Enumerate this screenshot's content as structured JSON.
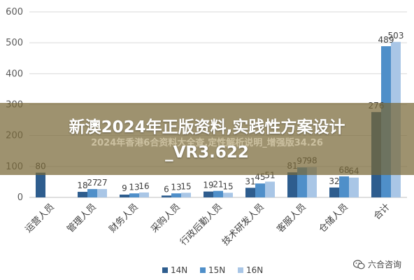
{
  "chart_data": {
    "type": "bar",
    "categories": [
      "运营人员",
      "管理人员",
      "财务人员",
      "采购人员",
      "行政后勤人员",
      "技术研发人员",
      "客服人员",
      "仓储人员",
      "合计"
    ],
    "series": [
      {
        "name": "14N",
        "color": "#2e5d8e",
        "values": [
          80,
          18,
          9,
          6,
          19,
          31,
          81,
          32,
          276
        ]
      },
      {
        "name": "15N",
        "color": "#4f8fc9",
        "values": [
          null,
          27,
          13,
          13,
          21,
          45,
          97,
          68,
          489
        ]
      },
      {
        "name": "16N",
        "color": "#a9c6e6",
        "values": [
          null,
          27,
          16,
          15,
          15,
          51,
          98,
          64,
          503
        ]
      }
    ],
    "data_labels": [
      [
        "80",
        "",
        ""
      ],
      [
        "18",
        "27",
        "27"
      ],
      [
        "9",
        "13",
        "16"
      ],
      [
        "6",
        "13",
        "15"
      ],
      [
        "19",
        "21",
        "15"
      ],
      [
        "31",
        "45",
        "51"
      ],
      [
        "81",
        "97",
        "98"
      ],
      [
        "32",
        "68",
        "64"
      ],
      [
        "276",
        "489",
        "503"
      ]
    ],
    "ylim": [
      0,
      600
    ],
    "yticks": [
      "0",
      "100",
      "200",
      "300",
      "400",
      "500",
      "600"
    ],
    "grid": true,
    "legend_position": "bottom"
  },
  "overlay": {
    "title_line1": "新澳2024年正版资料,实践性方案设计",
    "title_line2": "_VR3.622",
    "ghost_text": "2024年香港6合资料大全查,定性解析说明_增强版34.26"
  },
  "watermark": {
    "text": "六合咨询",
    "icon": "wechat-icon"
  }
}
